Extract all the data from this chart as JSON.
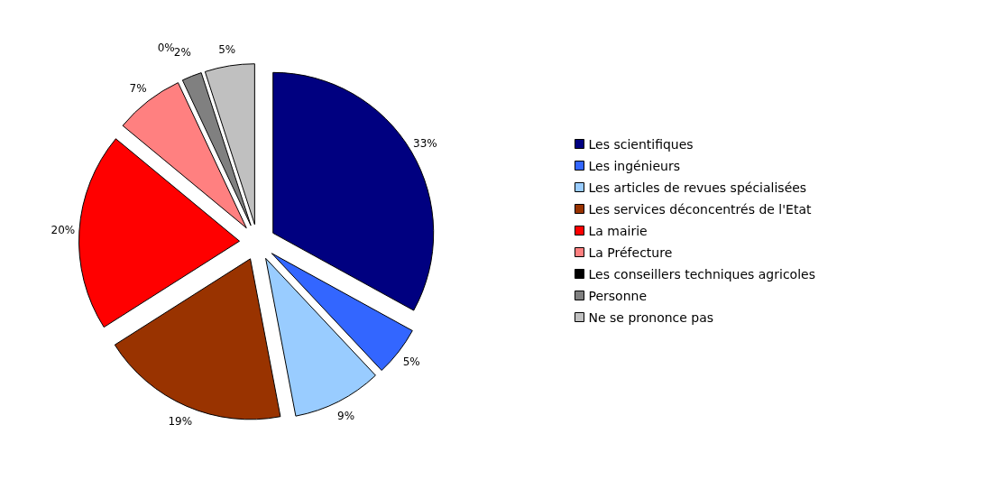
{
  "chart_data": {
    "type": "pie",
    "categories": [
      "Les scientifiques",
      "Les ingénieurs",
      "Les articles de revues spécialisées",
      "Les services déconcentrés de l'Etat",
      "La mairie",
      "La Préfecture",
      "Les conseillers techniques agricoles",
      "Personne",
      "Ne se prononce pas"
    ],
    "values": [
      33,
      5,
      9,
      19,
      20,
      7,
      0,
      2,
      5
    ],
    "value_labels": [
      "33%",
      "5%",
      "9%",
      "19%",
      "20%",
      "7%",
      "0%",
      "2%",
      "5%"
    ],
    "colors": [
      "#000080",
      "#3366ff",
      "#99ccff",
      "#993300",
      "#ff0000",
      "#ff8080",
      "#000000",
      "#808080",
      "#c0c0c0"
    ],
    "legend": "right"
  }
}
